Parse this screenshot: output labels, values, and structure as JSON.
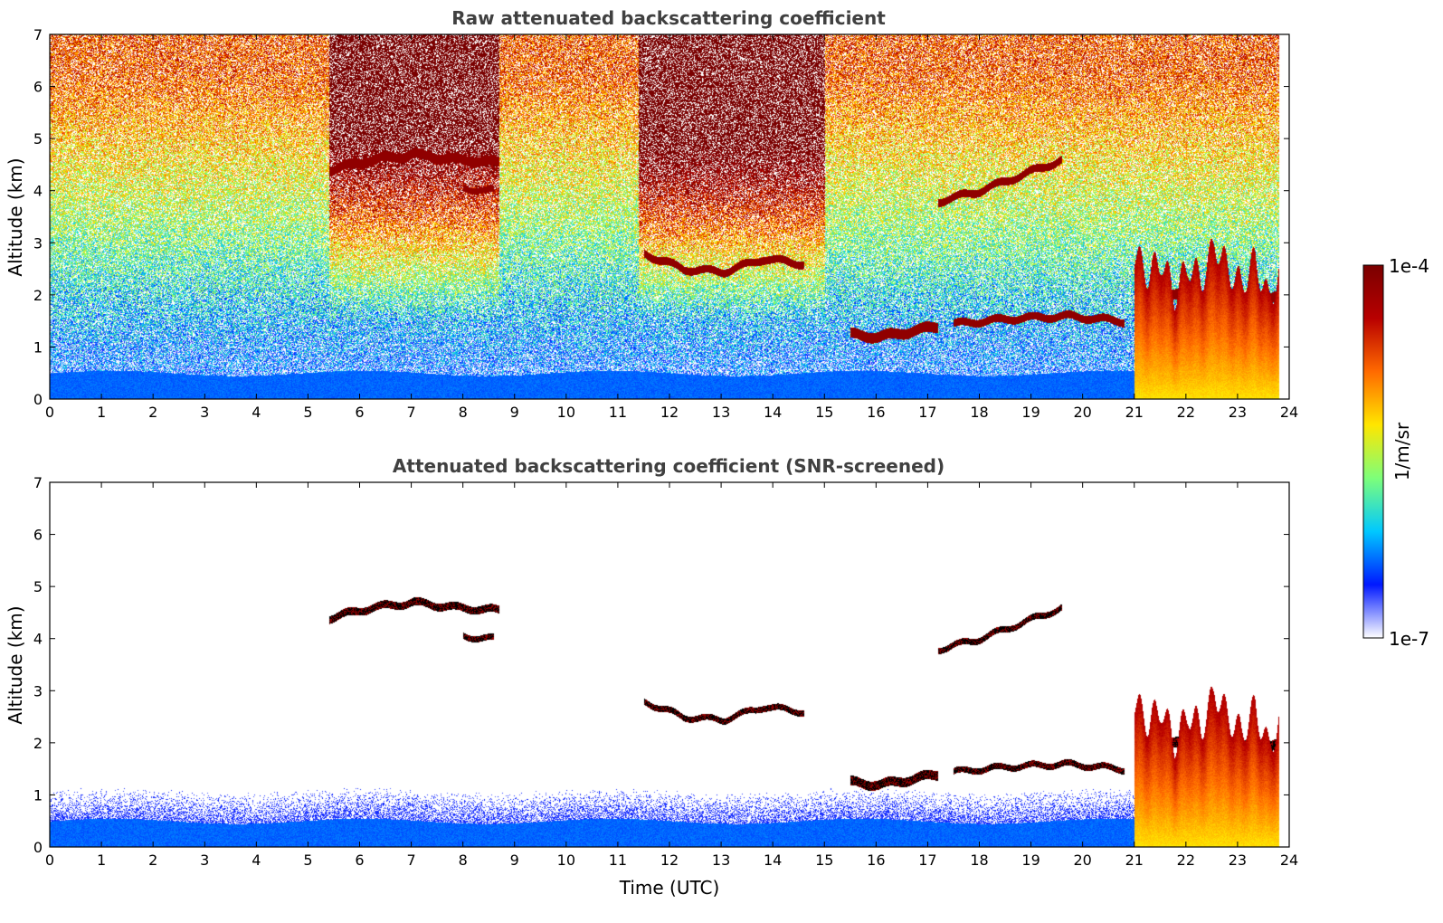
{
  "colors": {
    "colormap": [
      "#ffffff",
      "#0018ff",
      "#00c8ff",
      "#7dff7a",
      "#ffe600",
      "#ff6a00",
      "#b80000",
      "#7a0000"
    ],
    "screened_cloud_core": "#000000",
    "axis": "#000000",
    "title": "#404040"
  },
  "chart_data": [
    {
      "type": "heatmap",
      "title": "Raw attenuated backscattering coefficient",
      "xlabel": "",
      "ylabel": "Altitude (km)",
      "xlim": [
        0,
        24
      ],
      "ylim": [
        0,
        7
      ],
      "xticks": [
        "0",
        "1",
        "2",
        "3",
        "4",
        "5",
        "6",
        "7",
        "8",
        "9",
        "10",
        "11",
        "12",
        "13",
        "14",
        "15",
        "16",
        "17",
        "18",
        "19",
        "20",
        "21",
        "22",
        "23",
        "24"
      ],
      "yticks": [
        "0",
        "1",
        "2",
        "3",
        "4",
        "5",
        "6",
        "7"
      ],
      "scale": "log",
      "noise_free_sky": false,
      "noise_bands": [
        {
          "t0": 5.4,
          "t1": 8.7,
          "level": 0.82
        },
        {
          "t0": 11.4,
          "t1": 15.0,
          "level": 0.9
        }
      ],
      "cloud_layers": [
        {
          "t0": 5.4,
          "t1": 8.7,
          "z": [
            4.4,
            4.6,
            4.7,
            4.6,
            4.55
          ],
          "thickness": 0.18
        },
        {
          "t0": 8.0,
          "t1": 8.6,
          "z": [
            4.05,
            4.0
          ],
          "thickness": 0.12
        },
        {
          "t0": 11.5,
          "t1": 14.6,
          "z": [
            2.8,
            2.5,
            2.45,
            2.7,
            2.6
          ],
          "thickness": 0.15
        },
        {
          "t0": 15.5,
          "t1": 17.2,
          "z": [
            1.25,
            1.2,
            1.3,
            1.4
          ],
          "thickness": 0.2
        },
        {
          "t0": 17.2,
          "t1": 19.6,
          "z": [
            3.8,
            4.0,
            4.3,
            4.6
          ],
          "thickness": 0.15
        },
        {
          "t0": 17.5,
          "t1": 20.8,
          "z": [
            1.45,
            1.55,
            1.6,
            1.5
          ],
          "thickness": 0.15
        },
        {
          "t0": 21.0,
          "t1": 23.9,
          "z": [
            1.9,
            2.0,
            1.9,
            2.0
          ],
          "thickness": 0.2
        }
      ],
      "convective_columns": {
        "t0": 21.0,
        "t1": 23.85,
        "top_km": [
          2.8,
          2.4,
          2.7,
          2.0,
          2.6,
          2.3,
          3.0,
          2.5,
          2.2,
          2.7,
          1.9,
          2.5
        ]
      },
      "surface_layer_top_km": 0.5
    },
    {
      "type": "heatmap",
      "title": "Attenuated backscattering coefficient (SNR-screened)",
      "xlabel": "Time (UTC)",
      "ylabel": "Altitude (km)",
      "xlim": [
        0,
        24
      ],
      "ylim": [
        0,
        7
      ],
      "xticks": [
        "0",
        "1",
        "2",
        "3",
        "4",
        "5",
        "6",
        "7",
        "8",
        "9",
        "10",
        "11",
        "12",
        "13",
        "14",
        "15",
        "16",
        "17",
        "18",
        "19",
        "20",
        "21",
        "22",
        "23",
        "24"
      ],
      "yticks": [
        "0",
        "1",
        "2",
        "3",
        "4",
        "5",
        "6",
        "7"
      ],
      "scale": "log",
      "noise_free_sky": true,
      "cloud_layers": [
        {
          "t0": 5.4,
          "t1": 8.7,
          "z": [
            4.4,
            4.6,
            4.7,
            4.6,
            4.55
          ],
          "thickness": 0.15
        },
        {
          "t0": 8.0,
          "t1": 8.6,
          "z": [
            4.05,
            4.0
          ],
          "thickness": 0.12
        },
        {
          "t0": 11.5,
          "t1": 14.6,
          "z": [
            2.8,
            2.5,
            2.45,
            2.7,
            2.6
          ],
          "thickness": 0.12
        },
        {
          "t0": 15.5,
          "t1": 17.2,
          "z": [
            1.25,
            1.2,
            1.3,
            1.4
          ],
          "thickness": 0.18
        },
        {
          "t0": 17.2,
          "t1": 19.6,
          "z": [
            3.8,
            4.0,
            4.3,
            4.6
          ],
          "thickness": 0.12
        },
        {
          "t0": 17.5,
          "t1": 20.8,
          "z": [
            1.45,
            1.55,
            1.6,
            1.5
          ],
          "thickness": 0.12
        },
        {
          "t0": 21.0,
          "t1": 23.9,
          "z": [
            1.9,
            2.0,
            1.9,
            2.0
          ],
          "thickness": 0.2
        }
      ],
      "convective_columns": {
        "t0": 21.0,
        "t1": 23.85,
        "top_km": [
          2.8,
          2.4,
          2.7,
          2.0,
          2.6,
          2.3,
          3.0,
          2.5,
          2.2,
          2.7,
          1.9,
          2.5
        ]
      },
      "surface_layer_top_km": 0.5
    }
  ],
  "colorbar": {
    "label": "1/m/sr",
    "max_label": "1e-4",
    "min_label": "1e-7",
    "range": [
      1e-07,
      0.0001
    ],
    "scale": "log"
  }
}
